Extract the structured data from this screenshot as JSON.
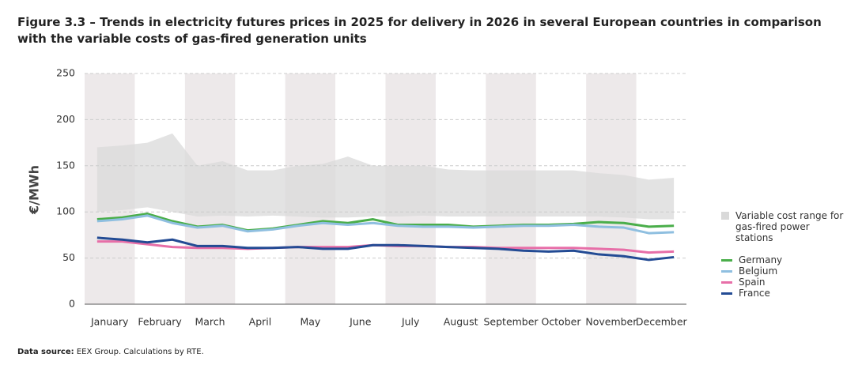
{
  "chart_data": {
    "type": "line",
    "title": "Figure 3.3 – Trends in electricity futures prices in 2025 for delivery in 2026 in several European countries in comparison with the variable costs of gas-fired generation units",
    "y_label": "€/MWh",
    "x": [
      0.25,
      0.75,
      1.25,
      1.75,
      2.25,
      2.75,
      3.25,
      3.75,
      4.25,
      4.75,
      5.25,
      5.75,
      6.25,
      6.75,
      7.25,
      7.75,
      8.25,
      8.75,
      9.25,
      9.75,
      10.25,
      10.75,
      11.25,
      11.75
    ],
    "xlim": [
      0,
      12
    ],
    "xticks": [
      {
        "value": 0.5,
        "label": "January"
      },
      {
        "value": 1.5,
        "label": "February"
      },
      {
        "value": 2.5,
        "label": "March"
      },
      {
        "value": 3.5,
        "label": "April"
      },
      {
        "value": 4.5,
        "label": "May"
      },
      {
        "value": 5.5,
        "label": "June"
      },
      {
        "value": 6.5,
        "label": "July"
      },
      {
        "value": 7.5,
        "label": "August"
      },
      {
        "value": 8.5,
        "label": "September"
      },
      {
        "value": 9.5,
        "label": "October"
      },
      {
        "value": 10.5,
        "label": "November"
      },
      {
        "value": 11.5,
        "label": "December"
      }
    ],
    "ylim": [
      0,
      250
    ],
    "yticks": [
      0,
      50,
      100,
      150,
      200,
      250
    ],
    "grid": true,
    "band": {
      "name": "Variable cost range for gas-fired power stations",
      "color": "#d9d9d9",
      "low": [
        100,
        102,
        105,
        100,
        95,
        96,
        95,
        96,
        95,
        94,
        94,
        95,
        95,
        96,
        95,
        95,
        95,
        95,
        95,
        95,
        95,
        94,
        92,
        92
      ],
      "high": [
        170,
        172,
        175,
        185,
        150,
        155,
        145,
        145,
        150,
        152,
        160,
        150,
        150,
        150,
        146,
        145,
        145,
        145,
        145,
        145,
        142,
        140,
        135,
        137
      ]
    },
    "series": [
      {
        "name": "Germany",
        "color": "#4aae4a",
        "values": [
          92,
          94,
          98,
          90,
          84,
          86,
          80,
          82,
          86,
          90,
          88,
          92,
          86,
          86,
          86,
          84,
          85,
          86,
          86,
          87,
          89,
          88,
          84,
          85
        ]
      },
      {
        "name": "Belgium",
        "color": "#8fbfe0",
        "values": [
          90,
          92,
          96,
          88,
          83,
          85,
          79,
          81,
          85,
          88,
          86,
          88,
          85,
          84,
          84,
          83,
          84,
          85,
          85,
          86,
          84,
          83,
          77,
          78
        ]
      },
      {
        "name": "Spain",
        "color": "#e76fa8",
        "values": [
          68,
          68,
          65,
          62,
          61,
          61,
          60,
          61,
          62,
          62,
          62,
          64,
          63,
          63,
          62,
          62,
          61,
          61,
          61,
          61,
          60,
          59,
          56,
          57
        ]
      },
      {
        "name": "France",
        "color": "#234b94",
        "values": [
          72,
          70,
          67,
          70,
          63,
          63,
          61,
          61,
          62,
          60,
          60,
          64,
          64,
          63,
          62,
          61,
          60,
          58,
          57,
          58,
          54,
          52,
          48,
          51
        ]
      }
    ],
    "source_label": "Data source:",
    "source": "EEX Group. Calculations by RTE."
  }
}
